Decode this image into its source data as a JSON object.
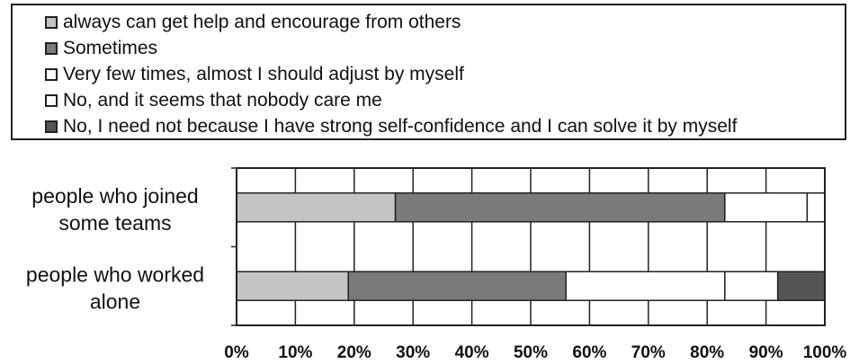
{
  "chart_data": {
    "type": "bar",
    "orientation": "horizontal",
    "stacked": true,
    "percent": true,
    "categories": [
      "people who joined some teams",
      "people who worked alone"
    ],
    "category_lines": [
      [
        "people who joined",
        "some teams"
      ],
      [
        "people who worked",
        "alone"
      ]
    ],
    "series": [
      {
        "name": "always can get help and encourage from others",
        "color": "#c4c4c4",
        "values": [
          27,
          19
        ]
      },
      {
        "name": "Sometimes",
        "color": "#7a7a7a",
        "values": [
          56,
          37
        ]
      },
      {
        "name": "Very few times, almost I should adjust by myself",
        "color": "#ffffff",
        "values": [
          14,
          27
        ]
      },
      {
        "name": "No, and it seems that nobody care me",
        "color": "#ffffff",
        "values": [
          3,
          9
        ]
      },
      {
        "name": "No, I need not because I have strong self-confidence and I can solve it by myself",
        "color": "#555555",
        "values": [
          0,
          8
        ]
      }
    ],
    "xlim": [
      0,
      100
    ],
    "xticks": [
      "0%",
      "10%",
      "20%",
      "30%",
      "40%",
      "50%",
      "60%",
      "70%",
      "80%",
      "90%",
      "100%"
    ],
    "grid": true,
    "legend_position": "top"
  }
}
